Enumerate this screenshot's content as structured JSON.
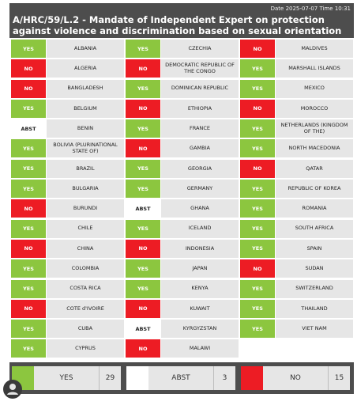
{
  "header": {
    "date_label": "Date 2025-07-07  Time 10:31",
    "title": "A/HRC/59/L.2 - Mandate of Independent Expert on protection against violence and discrimination based on sexual orientation and gender identity"
  },
  "columns": [
    [
      {
        "vote": "YES",
        "country": "ALBANIA"
      },
      {
        "vote": "NO",
        "country": "ALGERIA"
      },
      {
        "vote": "NO",
        "country": "BANGLADESH"
      },
      {
        "vote": "YES",
        "country": "BELGIUM"
      },
      {
        "vote": "ABST",
        "country": "BENIN"
      },
      {
        "vote": "YES",
        "country": "BOLIVIA (PLURINATIONAL STATE OF)"
      },
      {
        "vote": "YES",
        "country": "BRAZIL"
      },
      {
        "vote": "YES",
        "country": "BULGARIA"
      },
      {
        "vote": "NO",
        "country": "BURUNDI"
      },
      {
        "vote": "YES",
        "country": "CHILE"
      },
      {
        "vote": "NO",
        "country": "CHINA"
      },
      {
        "vote": "YES",
        "country": "COLOMBIA"
      },
      {
        "vote": "YES",
        "country": "COSTA RICA"
      },
      {
        "vote": "NO",
        "country": "COTE d'IVOIRE"
      },
      {
        "vote": "YES",
        "country": "CUBA"
      },
      {
        "vote": "YES",
        "country": "CYPRUS"
      }
    ],
    [
      {
        "vote": "YES",
        "country": "CZECHIA"
      },
      {
        "vote": "NO",
        "country": "DEMOCRATIC REPUBLIC OF THE CONGO"
      },
      {
        "vote": "YES",
        "country": "DOMINICAN REPUBLIC"
      },
      {
        "vote": "NO",
        "country": "ETHIOPIA"
      },
      {
        "vote": "YES",
        "country": "FRANCE"
      },
      {
        "vote": "NO",
        "country": "GAMBIA"
      },
      {
        "vote": "YES",
        "country": "GEORGIA"
      },
      {
        "vote": "YES",
        "country": "GERMANY"
      },
      {
        "vote": "ABST",
        "country": "GHANA"
      },
      {
        "vote": "YES",
        "country": "ICELAND"
      },
      {
        "vote": "NO",
        "country": "INDONESIA"
      },
      {
        "vote": "YES",
        "country": "JAPAN"
      },
      {
        "vote": "YES",
        "country": "KENYA"
      },
      {
        "vote": "NO",
        "country": "KUWAIT"
      },
      {
        "vote": "ABST",
        "country": "KYRGYZSTAN"
      },
      {
        "vote": "NO",
        "country": "MALAWI"
      }
    ],
    [
      {
        "vote": "NO",
        "country": "MALDIVES"
      },
      {
        "vote": "YES",
        "country": "MARSHALL ISLANDS"
      },
      {
        "vote": "YES",
        "country": "MEXICO"
      },
      {
        "vote": "NO",
        "country": "MOROCCO"
      },
      {
        "vote": "YES",
        "country": "NETHERLANDS (KINGDOM OF THE)"
      },
      {
        "vote": "YES",
        "country": "NORTH MACEDONIA"
      },
      {
        "vote": "NO",
        "country": "QATAR"
      },
      {
        "vote": "YES",
        "country": "REPUBLIC OF KOREA"
      },
      {
        "vote": "YES",
        "country": "ROMANIA"
      },
      {
        "vote": "YES",
        "country": "SOUTH AFRICA"
      },
      {
        "vote": "YES",
        "country": "SPAIN"
      },
      {
        "vote": "NO",
        "country": "SUDAN"
      },
      {
        "vote": "YES",
        "country": "SWITZERLAND"
      },
      {
        "vote": "YES",
        "country": "THAILAND"
      },
      {
        "vote": "YES",
        "country": "VIET NAM"
      }
    ]
  ],
  "totals": [
    {
      "label": "YES",
      "count": "29",
      "color": "#8cc63f"
    },
    {
      "label": "ABST",
      "count": "3",
      "color": "#ffffff"
    },
    {
      "label": "NO",
      "count": "15",
      "color": "#ed1c24"
    }
  ],
  "colors": {
    "yes": "#8cc63f",
    "no": "#ed1c24",
    "abst": "#ffffff",
    "header_bg": "#4d4d4d",
    "country_bg": "#e6e6e6"
  }
}
